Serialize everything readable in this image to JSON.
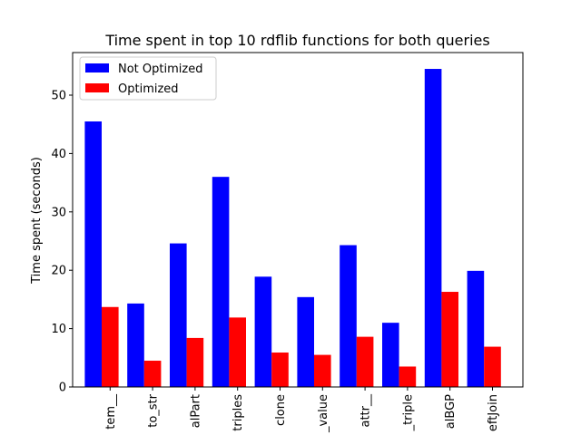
{
  "chart_data": {
    "type": "bar",
    "title": "Time spent in top 10 rdflib functions for both queries",
    "xlabel": "",
    "ylabel": "Time spent (seconds)",
    "categories": [
      "tem__",
      "to_str",
      "alPart",
      "triples",
      "clone",
      "_value",
      "attr__",
      "_triple",
      "alBGP",
      "eftJoin"
    ],
    "series": [
      {
        "name": "Not Optimized",
        "color": "#0000ff",
        "values": [
          45.5,
          14.3,
          24.6,
          36.0,
          18.9,
          15.4,
          24.3,
          11.0,
          54.5,
          19.9
        ]
      },
      {
        "name": "Optimized",
        "color": "#ff0000",
        "values": [
          13.7,
          4.5,
          8.4,
          11.9,
          5.9,
          5.5,
          8.6,
          3.5,
          16.3,
          6.9
        ]
      }
    ],
    "ylim": [
      0,
      57.3
    ],
    "yticks": [
      0,
      10,
      20,
      30,
      40,
      50
    ],
    "legend_position": "top-left",
    "grid": false
  }
}
